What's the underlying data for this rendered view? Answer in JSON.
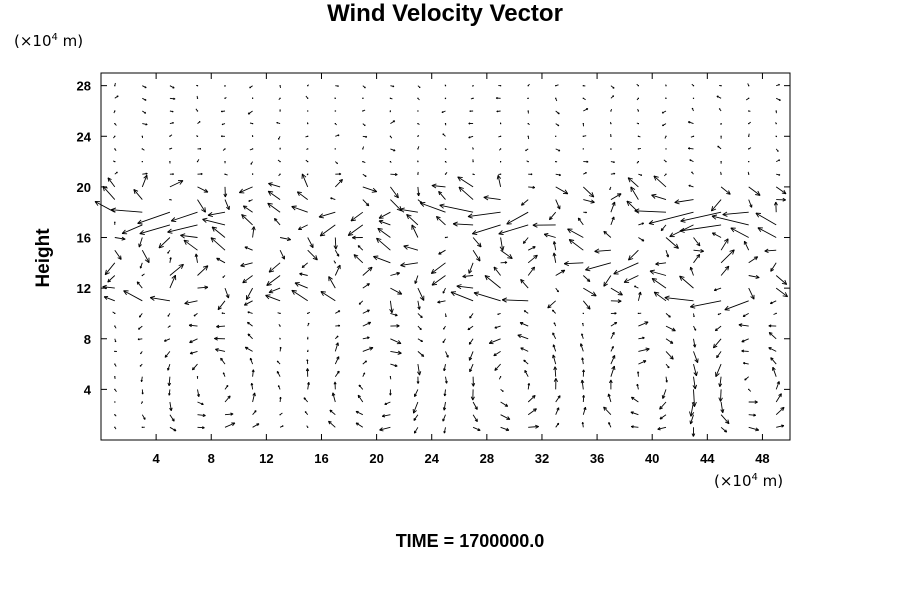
{
  "chart_data": {
    "type": "vector-field",
    "title": "Wind Velocity Vector",
    "ylabel": "Height",
    "x_unit": {
      "prefix": "(×10",
      "exp": "4",
      "suffix": " m)"
    },
    "y_unit": {
      "prefix": "(×10",
      "exp": "4",
      "suffix": " m)"
    },
    "xlim": [
      0,
      50
    ],
    "ylim": [
      0,
      29
    ],
    "x_ticks": [
      4,
      8,
      12,
      16,
      20,
      24,
      28,
      32,
      36,
      40,
      44,
      48
    ],
    "y_ticks": [
      4,
      8,
      12,
      16,
      20,
      24,
      28
    ],
    "x_tick_labels": [
      "4",
      "8",
      "12",
      "16",
      "20",
      "24",
      "28",
      "32",
      "36",
      "40",
      "44",
      "48"
    ],
    "y_tick_labels": [
      "4",
      "8",
      "12",
      "16",
      "20",
      "24",
      "28"
    ],
    "grid": false,
    "grid_spacing": {
      "dx": 2,
      "dy": 1
    },
    "time_label": "TIME = 1700000.0",
    "flow_features": {
      "lower_cells_centers_x": [
        8,
        20,
        30,
        40,
        47
      ],
      "upper_layer_band_y": [
        10.5,
        20
      ],
      "jet_rows": [
        {
          "y": 18,
          "direction": -1,
          "strength": 1.0
        },
        {
          "y": 17,
          "direction": -1,
          "strength": 0.8
        },
        {
          "y": 14,
          "direction": -1,
          "strength": 0.6
        },
        {
          "y": 11,
          "direction": -1,
          "strength": 0.7
        }
      ],
      "calm_above_y": 21
    }
  }
}
